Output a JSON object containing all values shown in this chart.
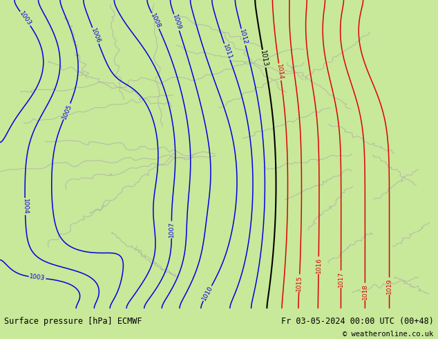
{
  "title_left": "Surface pressure [hPa] ECMWF",
  "title_right": "Fr 03-05-2024 00:00 UTC (00+48)",
  "copyright": "© weatheronline.co.uk",
  "bg_color": "#c8e89a",
  "land_color": "#c8e89a",
  "sea_color": "#ddeeff",
  "bottom_bar_color": "#c8c8c8",
  "blue_color": "#0000dd",
  "red_color": "#dd0000",
  "black_color": "#000000",
  "gray_color": "#aaaaaa",
  "bottom_text_color": "#000000",
  "figsize": [
    6.34,
    4.9
  ],
  "dpi": 100
}
